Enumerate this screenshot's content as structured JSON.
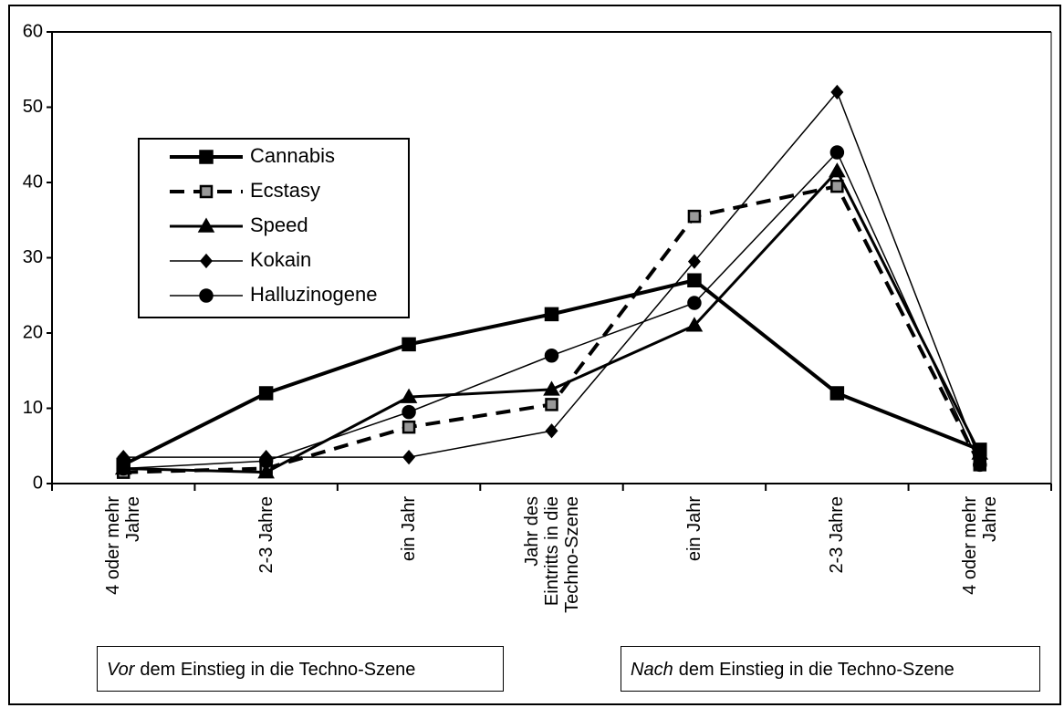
{
  "chart_data": {
    "type": "line",
    "categories": [
      "4 oder mehr\nJahre",
      "2-3 Jahre",
      "ein Jahr",
      "Jahr des\nEintritts in die\nTechno-Szene",
      "ein Jahr",
      "2-3 Jahre",
      "4 oder mehr\nJahre"
    ],
    "series": [
      {
        "name": "Cannabis",
        "color": "#000000",
        "marker": "square",
        "line_style": "solid",
        "line_width": 4,
        "values": [
          2.5,
          12,
          18.5,
          22.5,
          27,
          12,
          4.5
        ]
      },
      {
        "name": "Ecstasy",
        "color": "#000000",
        "marker": "open-square",
        "line_style": "dashed",
        "line_width": 4,
        "values": [
          1.5,
          2,
          7.5,
          10.5,
          35.5,
          39.5,
          2.5
        ]
      },
      {
        "name": "Speed",
        "color": "#000000",
        "marker": "triangle",
        "line_style": "solid",
        "line_width": 3,
        "values": [
          2,
          1.5,
          11.5,
          12.5,
          21,
          41.5,
          4
        ]
      },
      {
        "name": "Kokain",
        "color": "#000000",
        "marker": "diamond",
        "line_style": "solid",
        "line_width": 1.5,
        "values": [
          3.5,
          3.5,
          3.5,
          7,
          29.5,
          52,
          3
        ]
      },
      {
        "name": "Halluzinogene",
        "color": "#000000",
        "marker": "circle",
        "line_style": "solid",
        "line_width": 1.5,
        "values": [
          2,
          3,
          9.5,
          17,
          24,
          44,
          2.5
        ]
      }
    ],
    "ylim": [
      0,
      60
    ],
    "yticks": [
      0,
      10,
      20,
      30,
      40,
      50,
      60
    ],
    "grid": false,
    "legend": "upper left",
    "annotations": [
      {
        "emphasis": "Vor",
        "text": "dem Einstieg in die Techno-Szene"
      },
      {
        "emphasis": "Nach",
        "text": "dem Einstieg in die Techno-Szene"
      }
    ]
  }
}
